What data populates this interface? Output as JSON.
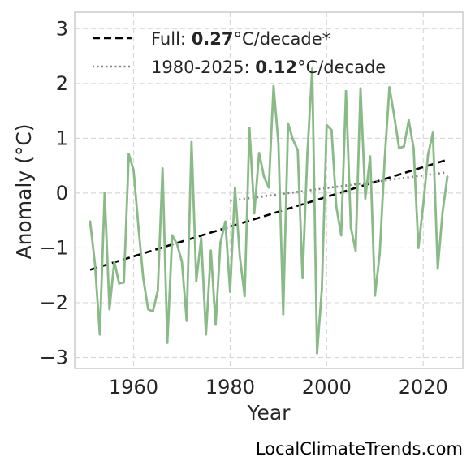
{
  "chart_data": {
    "type": "line",
    "title": "",
    "xlabel": "Year",
    "ylabel": "Anomaly (°C)",
    "xlim": [
      1947.8,
      2028.2
    ],
    "ylim": [
      -3.2,
      3.3
    ],
    "xticks": [
      1960,
      1980,
      2000,
      2020
    ],
    "yticks": [
      -3,
      -2,
      -1,
      0,
      1,
      2,
      3
    ],
    "grid": true,
    "legend_position": "top-left",
    "colors": {
      "series": "#8aba87",
      "full_trend": "#000000",
      "recent_trend": "#808080",
      "axis_frame": "#cccccc",
      "grid": "#d9d9d9",
      "text": "#262626"
    },
    "series": [
      {
        "x": [
          1951,
          1952,
          1953,
          1954,
          1955,
          1956,
          1957,
          1958,
          1959,
          1960,
          1961,
          1962,
          1963,
          1964,
          1965,
          1966,
          1967,
          1968,
          1969,
          1970,
          1971,
          1972,
          1973,
          1974,
          1975,
          1976,
          1977,
          1978,
          1979,
          1980,
          1981,
          1982,
          1983,
          1984,
          1985,
          1986,
          1987,
          1988,
          1989,
          1990,
          1991,
          1992,
          1993,
          1994,
          1995,
          1996,
          1997,
          1998,
          1999,
          2000,
          2001,
          2002,
          2003,
          2004,
          2005,
          2006,
          2007,
          2008,
          2009,
          2010,
          2011,
          2012,
          2013,
          2014,
          2015,
          2016,
          2017,
          2018,
          2019,
          2020,
          2021,
          2022,
          2023,
          2024,
          2025
        ],
        "values": [
          -0.52,
          -1.3,
          -2.58,
          0.0,
          -2.12,
          -1.25,
          -1.65,
          -1.63,
          0.71,
          0.42,
          -0.62,
          -1.55,
          -2.12,
          -2.16,
          -1.78,
          0.45,
          -2.73,
          -0.77,
          -0.93,
          -1.25,
          -2.33,
          0.93,
          -1.6,
          -0.82,
          -2.58,
          -1.05,
          -2.4,
          -0.9,
          -0.52,
          -1.8,
          0.1,
          -1.15,
          -1.88,
          1.18,
          -0.37,
          0.73,
          0.3,
          0.1,
          1.95,
          0.9,
          -2.21,
          1.27,
          0.98,
          0.78,
          -1.55,
          0.73,
          2.27,
          -2.92,
          -1.75,
          1.24,
          1.15,
          -0.25,
          -0.77,
          1.86,
          -0.63,
          -1.05,
          1.91,
          -0.1,
          0.67,
          -1.87,
          -1.1,
          0.6,
          1.93,
          1.4,
          0.82,
          0.85,
          1.33,
          0.82,
          -1.0,
          -0.22,
          0.7,
          1.1,
          -1.38,
          -0.35,
          0.3
        ]
      }
    ],
    "trendlines": [
      {
        "name": "Full",
        "rate": "0.27",
        "unit": "°C/decade",
        "mark": "*",
        "style": "dashed",
        "x": [
          1951,
          2025
        ],
        "y": [
          -1.4,
          0.61
        ]
      },
      {
        "name": "1980-2025",
        "rate": "0.12",
        "unit": "°C/decade",
        "mark": "",
        "style": "dotted",
        "x": [
          1980,
          2025
        ],
        "y": [
          -0.14,
          0.38
        ]
      }
    ]
  },
  "credit": "LocalClimateTrends.com"
}
